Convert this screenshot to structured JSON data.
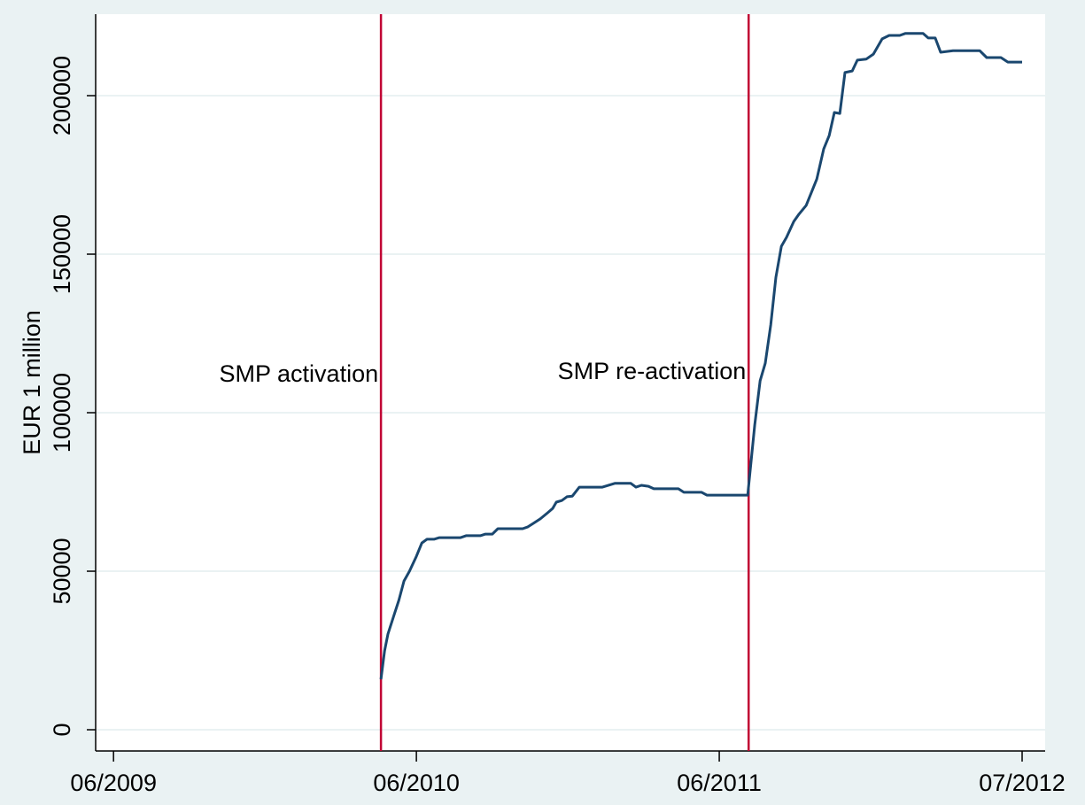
{
  "chart_data": {
    "type": "line",
    "y_label": "EUR 1 million",
    "color": "#1a476f",
    "grid": true,
    "xlim": [
      2009.358,
      2012.493
    ],
    "ylim": [
      -6700,
      225700
    ],
    "xticks": [
      {
        "value": 2009.417,
        "label": "06/2009"
      },
      {
        "value": 2010.417,
        "label": "06/2010"
      },
      {
        "value": 2011.417,
        "label": "06/2011"
      },
      {
        "value": 2012.417,
        "label": "07/2012"
      }
    ],
    "yticks": [
      0,
      50000,
      100000,
      150000,
      200000
    ],
    "annotations": [
      {
        "x": 2010.3,
        "label": "SMP activation",
        "color": "#c10534"
      },
      {
        "x": 2011.514,
        "label": "SMP re-activation",
        "color": "#c10534"
      }
    ],
    "x": [
      2010.3,
      2010.312,
      2010.323,
      2010.341,
      2010.359,
      2010.376,
      2010.394,
      2010.417,
      2010.435,
      2010.452,
      2010.475,
      2010.493,
      2010.563,
      2010.581,
      2010.628,
      2010.645,
      2010.668,
      2010.686,
      2010.768,
      2010.785,
      2010.803,
      2010.826,
      2010.85,
      2010.867,
      2010.879,
      2010.897,
      2010.914,
      2010.932,
      2010.955,
      2011.031,
      2011.072,
      2011.125,
      2011.142,
      2011.16,
      2011.183,
      2011.201,
      2011.282,
      2011.3,
      2011.359,
      2011.376,
      2011.511,
      2011.534,
      2011.552,
      2011.569,
      2011.587,
      2011.604,
      2011.622,
      2011.639,
      2011.663,
      2011.68,
      2011.704,
      2011.739,
      2011.762,
      2011.78,
      2011.797,
      2011.815,
      2011.832,
      2011.856,
      2011.873,
      2011.902,
      2011.926,
      2011.955,
      2011.978,
      2012.013,
      2012.031,
      2012.09,
      2012.107,
      2012.13,
      2012.148,
      2012.189,
      2012.277,
      2012.3,
      2012.347,
      2012.37,
      2012.417
    ],
    "values": [
      15900,
      24900,
      30200,
      35500,
      40800,
      46900,
      50000,
      54700,
      58900,
      60100,
      60100,
      60600,
      60600,
      61200,
      61200,
      61700,
      61700,
      63400,
      63400,
      64000,
      65100,
      66500,
      68400,
      69800,
      71800,
      72300,
      73500,
      73700,
      76500,
      76500,
      77700,
      77700,
      76500,
      77100,
      76800,
      76000,
      76000,
      74900,
      74900,
      74000,
      74000,
      96100,
      110100,
      115600,
      127700,
      142700,
      152500,
      155300,
      160300,
      162600,
      165400,
      173700,
      183200,
      187400,
      194700,
      194400,
      207300,
      207800,
      211200,
      211500,
      213100,
      217900,
      219000,
      219000,
      219600,
      219600,
      218200,
      218200,
      213700,
      214200,
      214200,
      212000,
      212000,
      210600,
      210600
    ]
  }
}
